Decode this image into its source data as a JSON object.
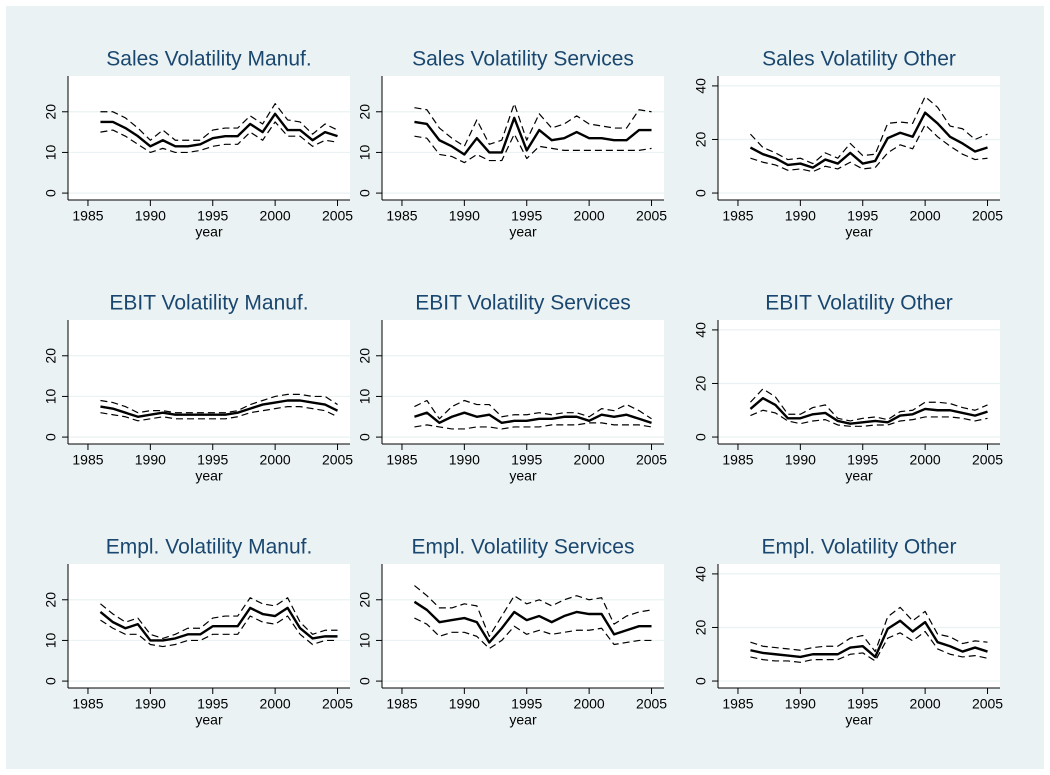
{
  "chart_data": [
    {
      "type": "line",
      "title": "Sales Volatility Manuf.",
      "xlabel": "year",
      "x": [
        1986,
        1987,
        1988,
        1989,
        1990,
        1991,
        1992,
        1993,
        1994,
        1995,
        1996,
        1997,
        1998,
        1999,
        2000,
        2001,
        2002,
        2003,
        2004,
        2005
      ],
      "xlim": [
        1983.4,
        2006
      ],
      "xticks": [
        1985,
        1990,
        1995,
        2000,
        2005
      ],
      "ylim": [
        -1.7,
        28.8
      ],
      "yticks": [
        0,
        10,
        20
      ],
      "grid": true,
      "series": [
        {
          "color": "#000000",
          "style": "solid",
          "values": [
            17.5,
            17.5,
            16,
            14,
            11.5,
            13,
            11.5,
            11.5,
            12,
            13.5,
            14,
            14,
            17,
            15,
            19.5,
            15.5,
            15.5,
            13,
            15,
            14
          ]
        },
        {
          "color": "#000000",
          "style": "dashed",
          "values": [
            20,
            20,
            18.5,
            16,
            13,
            15.5,
            13,
            13,
            13,
            15.5,
            16,
            16,
            19,
            17,
            22,
            18,
            17.5,
            14.5,
            17,
            15.5
          ]
        },
        {
          "color": "#000000",
          "style": "dashed",
          "values": [
            15,
            15.5,
            14,
            12,
            10,
            11,
            10,
            10,
            10.5,
            11.5,
            12,
            12,
            15,
            13,
            17.5,
            14,
            14,
            11.5,
            13,
            12.5
          ]
        }
      ]
    },
    {
      "type": "line",
      "title": "Sales Volatility Services",
      "xlabel": "year",
      "x": [
        1986,
        1987,
        1988,
        1989,
        1990,
        1991,
        1992,
        1993,
        1994,
        1995,
        1996,
        1997,
        1998,
        1999,
        2000,
        2001,
        2002,
        2003,
        2004,
        2005
      ],
      "xlim": [
        1983.4,
        2006
      ],
      "xticks": [
        1985,
        1990,
        1995,
        2000,
        2005
      ],
      "ylim": [
        -1.7,
        28.8
      ],
      "yticks": [
        0,
        10,
        20
      ],
      "grid": true,
      "series": [
        {
          "color": "#000000",
          "style": "solid",
          "values": [
            17.5,
            17,
            13,
            11.5,
            9.5,
            13.5,
            10,
            10,
            18.5,
            10.5,
            15.5,
            13,
            13.5,
            15,
            13.5,
            13.5,
            13,
            13,
            15.5,
            15.5
          ]
        },
        {
          "color": "#000000",
          "style": "dashed",
          "values": [
            21,
            20.5,
            16,
            13.5,
            11.5,
            18,
            12,
            13,
            22,
            13,
            19.5,
            16,
            17,
            19,
            17,
            16.5,
            16,
            16,
            20.5,
            20
          ]
        },
        {
          "color": "#000000",
          "style": "dashed",
          "values": [
            14,
            13.5,
            9.5,
            9,
            7.5,
            9.5,
            8,
            8,
            14.5,
            8.5,
            11.5,
            11,
            10.5,
            10.5,
            10.5,
            10.5,
            10.5,
            10.5,
            10.5,
            11
          ]
        }
      ]
    },
    {
      "type": "line",
      "title": "Sales Volatility Other",
      "xlabel": "year",
      "x": [
        1986,
        1987,
        1988,
        1989,
        1990,
        1991,
        1992,
        1993,
        1994,
        1995,
        1996,
        1997,
        1998,
        1999,
        2000,
        2001,
        2002,
        2003,
        2004,
        2005
      ],
      "xlim": [
        1983.4,
        2006
      ],
      "xticks": [
        1985,
        1990,
        1995,
        2000,
        2005
      ],
      "ylim": [
        -2.6,
        43.7
      ],
      "yticks": [
        0,
        20,
        40
      ],
      "grid": true,
      "series": [
        {
          "color": "#000000",
          "style": "solid",
          "values": [
            17,
            14.5,
            13,
            10.5,
            11,
            9.5,
            12.5,
            11,
            15,
            11,
            12,
            20.5,
            22.5,
            21,
            30,
            26,
            21,
            18.5,
            15.5,
            17
          ]
        },
        {
          "color": "#000000",
          "style": "dashed",
          "values": [
            22,
            17,
            15,
            12.5,
            13,
            11,
            15,
            13,
            18.5,
            14,
            14.5,
            26,
            26.5,
            26,
            36,
            32,
            25,
            24,
            20,
            22
          ]
        },
        {
          "color": "#000000",
          "style": "dashed",
          "values": [
            13,
            11.5,
            10.5,
            8.5,
            9,
            8,
            10,
            9,
            11.5,
            9,
            9.5,
            15,
            18,
            16.5,
            25.5,
            21,
            17.5,
            14.5,
            12.5,
            13
          ]
        }
      ]
    },
    {
      "type": "line",
      "title": "EBIT Volatility Manuf.",
      "xlabel": "year",
      "x": [
        1986,
        1987,
        1988,
        1989,
        1990,
        1991,
        1992,
        1993,
        1994,
        1995,
        1996,
        1997,
        1998,
        1999,
        2000,
        2001,
        2002,
        2003,
        2004,
        2005
      ],
      "xlim": [
        1983.4,
        2006
      ],
      "xticks": [
        1985,
        1990,
        1995,
        2000,
        2005
      ],
      "ylim": [
        -1.7,
        28.8
      ],
      "yticks": [
        0,
        10,
        20
      ],
      "grid": true,
      "series": [
        {
          "color": "#000000",
          "style": "solid",
          "values": [
            7.5,
            7,
            6,
            5,
            5.5,
            6,
            5.5,
            5.5,
            5.5,
            5.5,
            5.5,
            6,
            7,
            8,
            8.5,
            9,
            9,
            8.5,
            8,
            6.5
          ]
        },
        {
          "color": "#000000",
          "style": "dashed",
          "values": [
            9,
            8.5,
            7.5,
            6,
            6.5,
            6.5,
            6,
            6,
            6,
            6,
            6,
            6.5,
            8,
            9,
            10,
            10.5,
            10.5,
            10,
            10,
            8
          ]
        },
        {
          "color": "#000000",
          "style": "dashed",
          "values": [
            6,
            5.5,
            5,
            4,
            4.5,
            5,
            4.5,
            4.5,
            4.5,
            4.5,
            4.5,
            5,
            6,
            6.5,
            7,
            7.5,
            7.5,
            7,
            6.5,
            5
          ]
        }
      ]
    },
    {
      "type": "line",
      "title": "EBIT Volatility Services",
      "xlabel": "year",
      "x": [
        1986,
        1987,
        1988,
        1989,
        1990,
        1991,
        1992,
        1993,
        1994,
        1995,
        1996,
        1997,
        1998,
        1999,
        2000,
        2001,
        2002,
        2003,
        2004,
        2005
      ],
      "xlim": [
        1983.4,
        2006
      ],
      "xticks": [
        1985,
        1990,
        1995,
        2000,
        2005
      ],
      "ylim": [
        -1.7,
        28.8
      ],
      "yticks": [
        0,
        10,
        20
      ],
      "grid": true,
      "series": [
        {
          "color": "#000000",
          "style": "solid",
          "values": [
            5,
            6,
            3.5,
            5,
            6,
            5,
            5.5,
            3.5,
            4,
            4,
            4.5,
            4.5,
            5,
            5,
            4,
            5.5,
            5,
            5.5,
            4.5,
            3.5
          ]
        },
        {
          "color": "#000000",
          "style": "dashed",
          "values": [
            7.5,
            9,
            4.5,
            7.5,
            9,
            8,
            8,
            5,
            5.5,
            5.5,
            6,
            5.5,
            6,
            6,
            5,
            7,
            6.5,
            8,
            6.5,
            4.5
          ]
        },
        {
          "color": "#000000",
          "style": "dashed",
          "values": [
            2.5,
            3,
            2.5,
            2,
            2,
            2.5,
            2.5,
            2,
            2.5,
            2.5,
            2.5,
            3,
            3,
            3,
            3.5,
            3.5,
            3,
            3,
            3,
            2.5
          ]
        }
      ]
    },
    {
      "type": "line",
      "title": "EBIT Volatility Other",
      "xlabel": "year",
      "x": [
        1986,
        1987,
        1988,
        1989,
        1990,
        1991,
        1992,
        1993,
        1994,
        1995,
        1996,
        1997,
        1998,
        1999,
        2000,
        2001,
        2002,
        2003,
        2004,
        2005
      ],
      "xlim": [
        1983.4,
        2006
      ],
      "xticks": [
        1985,
        1990,
        1995,
        2000,
        2005
      ],
      "ylim": [
        -2.6,
        43.7
      ],
      "yticks": [
        0,
        20,
        40
      ],
      "grid": true,
      "series": [
        {
          "color": "#000000",
          "style": "solid",
          "values": [
            10.5,
            14.5,
            12,
            7,
            7,
            8.5,
            9,
            6,
            5,
            5.5,
            6,
            5.5,
            8,
            8.5,
            10.5,
            10,
            10,
            9,
            8,
            9.5
          ]
        },
        {
          "color": "#000000",
          "style": "dashed",
          "values": [
            13,
            18,
            15,
            8.5,
            8.5,
            11,
            12,
            7,
            6,
            7,
            7.5,
            6.5,
            9.5,
            10,
            13,
            13,
            12.5,
            11,
            10,
            12
          ]
        },
        {
          "color": "#000000",
          "style": "dashed",
          "values": [
            8,
            10,
            9,
            6,
            5,
            6,
            6.5,
            4.5,
            4,
            4,
            4.5,
            4.5,
            6,
            6.5,
            7.5,
            7.5,
            7.5,
            7,
            6,
            7
          ]
        }
      ]
    },
    {
      "type": "line",
      "title": "Empl. Volatility Manuf.",
      "xlabel": "year",
      "x": [
        1986,
        1987,
        1988,
        1989,
        1990,
        1991,
        1992,
        1993,
        1994,
        1995,
        1996,
        1997,
        1998,
        1999,
        2000,
        2001,
        2002,
        2003,
        2004,
        2005
      ],
      "xlim": [
        1983.4,
        2006
      ],
      "xticks": [
        1985,
        1990,
        1995,
        2000,
        2005
      ],
      "ylim": [
        -1.7,
        28.8
      ],
      "yticks": [
        0,
        10,
        20
      ],
      "grid": true,
      "series": [
        {
          "color": "#000000",
          "style": "solid",
          "values": [
            17,
            14.5,
            13,
            14,
            10,
            10,
            10.5,
            11.5,
            11.5,
            13.5,
            13.5,
            13.5,
            18,
            16.5,
            16,
            18,
            13,
            10.5,
            11,
            11
          ]
        },
        {
          "color": "#000000",
          "style": "dashed",
          "values": [
            19,
            16.5,
            14.5,
            15.5,
            11.5,
            10.5,
            11.5,
            13,
            13,
            15.5,
            16,
            16,
            20.5,
            19,
            18.5,
            20.5,
            14.5,
            11.5,
            12.5,
            12.5
          ]
        },
        {
          "color": "#000000",
          "style": "dashed",
          "values": [
            15,
            13,
            11.5,
            11.5,
            9,
            8.5,
            9,
            10,
            10,
            11.5,
            11.5,
            11.5,
            16,
            14.5,
            14,
            16,
            11.5,
            9,
            10,
            10
          ]
        }
      ]
    },
    {
      "type": "line",
      "title": "Empl. Volatility Services",
      "xlabel": "year",
      "x": [
        1986,
        1987,
        1988,
        1989,
        1990,
        1991,
        1992,
        1993,
        1994,
        1995,
        1996,
        1997,
        1998,
        1999,
        2000,
        2001,
        2002,
        2003,
        2004,
        2005
      ],
      "xlim": [
        1983.4,
        2006
      ],
      "xticks": [
        1985,
        1990,
        1995,
        2000,
        2005
      ],
      "ylim": [
        -1.7,
        28.8
      ],
      "yticks": [
        0,
        10,
        20
      ],
      "grid": true,
      "series": [
        {
          "color": "#000000",
          "style": "solid",
          "values": [
            19.5,
            17.5,
            14.5,
            15,
            15.5,
            14.5,
            9.5,
            13,
            17,
            15,
            16,
            14.5,
            16,
            17,
            16.5,
            16.5,
            11.5,
            12.5,
            13.5,
            13.5
          ]
        },
        {
          "color": "#000000",
          "style": "dashed",
          "values": [
            23.5,
            21,
            18,
            18,
            19,
            18.5,
            11,
            16,
            21,
            19,
            20,
            18.5,
            20,
            21,
            20,
            20.5,
            14,
            16,
            17,
            17.5
          ]
        },
        {
          "color": "#000000",
          "style": "dashed",
          "values": [
            15.5,
            14,
            11,
            12,
            12,
            11,
            8,
            10,
            13.5,
            11.5,
            12.5,
            11.5,
            12,
            12.5,
            12.5,
            13,
            9,
            9.5,
            10,
            10
          ]
        }
      ]
    },
    {
      "type": "line",
      "title": "Empl. Volatility Other",
      "xlabel": "year",
      "x": [
        1986,
        1987,
        1988,
        1989,
        1990,
        1991,
        1992,
        1993,
        1994,
        1995,
        1996,
        1997,
        1998,
        1999,
        2000,
        2001,
        2002,
        2003,
        2004,
        2005
      ],
      "xlim": [
        1983.4,
        2006
      ],
      "xticks": [
        1985,
        1990,
        1995,
        2000,
        2005
      ],
      "ylim": [
        -2.6,
        43.7
      ],
      "yticks": [
        0,
        20,
        40
      ],
      "grid": true,
      "series": [
        {
          "color": "#000000",
          "style": "solid",
          "values": [
            11.5,
            10.5,
            10,
            9.5,
            9,
            10,
            10,
            10,
            12.5,
            13,
            9,
            19.5,
            22.5,
            18.5,
            22,
            14.5,
            13,
            11,
            12.5,
            11
          ]
        },
        {
          "color": "#000000",
          "style": "dashed",
          "values": [
            14.5,
            13,
            12.5,
            12,
            11.5,
            12.5,
            13,
            13,
            16,
            17,
            11,
            24,
            27.5,
            22.5,
            26,
            17.5,
            16.5,
            14,
            15,
            14.5
          ]
        },
        {
          "color": "#000000",
          "style": "dashed",
          "values": [
            9,
            8,
            7.5,
            7.5,
            7,
            8,
            8,
            8,
            10,
            10.5,
            7.5,
            16,
            18,
            15,
            18.5,
            12,
            10,
            9,
            9.5,
            8.5
          ]
        }
      ]
    }
  ]
}
